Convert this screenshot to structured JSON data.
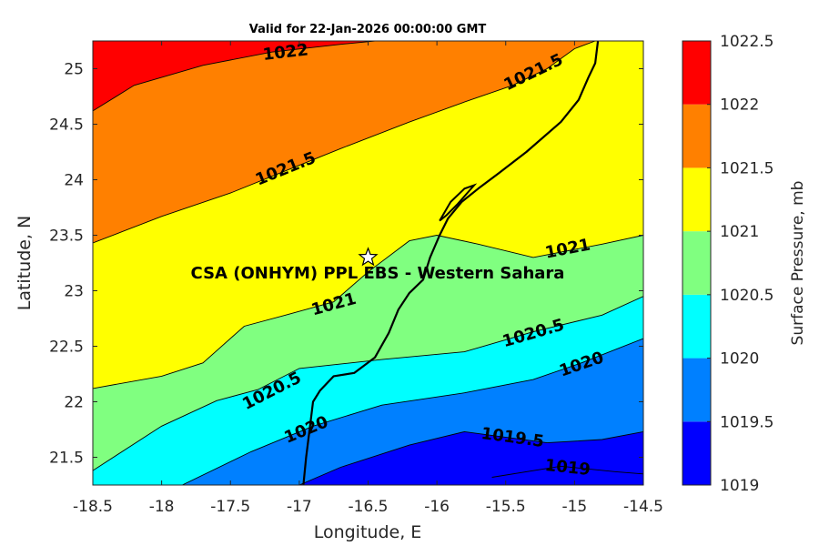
{
  "title": "Valid for 22-Jan-2026 00:00:00 GMT",
  "xlabel": "Longitude, E",
  "ylabel": "Latitude, N",
  "colorbar_label": "Surface Pressure, mb",
  "x_ticks": [
    "-18.5",
    "-18",
    "-17.5",
    "-17",
    "-16.5",
    "-16",
    "-15.5",
    "-15",
    "-14.5"
  ],
  "y_ticks": [
    "21.5",
    "22",
    "22.5",
    "23",
    "23.5",
    "24",
    "24.5",
    "25"
  ],
  "colorbar_ticks": [
    "1019",
    "1019.5",
    "1020",
    "1020.5",
    "1021",
    "1021.5",
    "1022",
    "1022.5"
  ],
  "site_label": "CSA (ONHYM) PPL EBS  - Western Sahara",
  "contour_labels": [
    {
      "text": "1022",
      "lon": -17.1,
      "lat": 25.15
    },
    {
      "text": "1021.5",
      "lon": -15.3,
      "lat": 24.97
    },
    {
      "text": "1021.5",
      "lon": -17.1,
      "lat": 24.1
    },
    {
      "text": "1021",
      "lon": -15.05,
      "lat": 23.38
    },
    {
      "text": "1021",
      "lon": -16.75,
      "lat": 22.88
    },
    {
      "text": "1020.5",
      "lon": -15.3,
      "lat": 22.62
    },
    {
      "text": "1020.5",
      "lon": -17.2,
      "lat": 22.1
    },
    {
      "text": "1020",
      "lon": -14.95,
      "lat": 22.34
    },
    {
      "text": "1020",
      "lon": -16.95,
      "lat": 21.75
    },
    {
      "text": "1019.5",
      "lon": -15.45,
      "lat": 21.68
    },
    {
      "text": "1019",
      "lon": -15.05,
      "lat": 21.41
    }
  ],
  "chart_data": {
    "type": "filled-contour",
    "title": "Valid for 22-Jan-2026 00:00:00 GMT",
    "xlabel": "Longitude, E",
    "ylabel": "Latitude, N",
    "xlim": [
      -18.5,
      -14.5
    ],
    "ylim": [
      21.25,
      25.25
    ],
    "levels": [
      1019,
      1019.5,
      1020,
      1020.5,
      1021,
      1021.5,
      1022,
      1022.5
    ],
    "colormap": [
      "#0000ff",
      "#0080ff",
      "#00ffff",
      "#80ff80",
      "#ffff00",
      "#ff8000",
      "#ff0000",
      "#800000"
    ],
    "colorbar_label": "Surface Pressure, mb",
    "site": {
      "name": "CSA (ONHYM) PPL EBS  - Western Sahara",
      "lon": -16.5,
      "lat": 23.3
    },
    "isobars": [
      {
        "level": 1022,
        "points": [
          [
            -18.5,
            24.62
          ],
          [
            -18.2,
            24.85
          ],
          [
            -17.7,
            25.03
          ],
          [
            -17.2,
            25.15
          ],
          [
            -16.7,
            25.22
          ],
          [
            -16.45,
            25.25
          ]
        ]
      },
      {
        "level": 1021.5,
        "points": [
          [
            -18.5,
            23.43
          ],
          [
            -18.0,
            23.67
          ],
          [
            -17.5,
            23.88
          ],
          [
            -17.2,
            24.03
          ],
          [
            -16.7,
            24.28
          ],
          [
            -16.2,
            24.52
          ],
          [
            -15.8,
            24.7
          ],
          [
            -15.45,
            24.85
          ],
          [
            -15.2,
            25.0
          ],
          [
            -15.0,
            25.18
          ],
          [
            -14.85,
            25.25
          ]
        ]
      },
      {
        "level": 1021,
        "points": [
          [
            -18.5,
            22.12
          ],
          [
            -18.0,
            22.23
          ],
          [
            -17.7,
            22.35
          ],
          [
            -17.4,
            22.68
          ],
          [
            -17.1,
            22.78
          ],
          [
            -16.75,
            22.9
          ],
          [
            -16.5,
            23.17
          ],
          [
            -16.2,
            23.45
          ],
          [
            -16.0,
            23.5
          ],
          [
            -15.7,
            23.42
          ],
          [
            -15.3,
            23.3
          ],
          [
            -14.8,
            23.42
          ],
          [
            -14.5,
            23.5
          ]
        ]
      },
      {
        "level": 1020.5,
        "points": [
          [
            -18.5,
            21.38
          ],
          [
            -18.0,
            21.78
          ],
          [
            -17.6,
            22.01
          ],
          [
            -17.3,
            22.11
          ],
          [
            -17.0,
            22.3
          ],
          [
            -16.4,
            22.38
          ],
          [
            -15.8,
            22.45
          ],
          [
            -15.3,
            22.63
          ],
          [
            -14.8,
            22.78
          ],
          [
            -14.5,
            22.95
          ]
        ]
      },
      {
        "level": 1020,
        "points": [
          [
            -17.85,
            21.25
          ],
          [
            -17.35,
            21.55
          ],
          [
            -16.9,
            21.78
          ],
          [
            -16.4,
            21.97
          ],
          [
            -15.8,
            22.08
          ],
          [
            -15.3,
            22.2
          ],
          [
            -14.95,
            22.35
          ],
          [
            -14.5,
            22.57
          ]
        ]
      },
      {
        "level": 1019.5,
        "points": [
          [
            -17.0,
            21.25
          ],
          [
            -16.7,
            21.41
          ],
          [
            -16.2,
            21.61
          ],
          [
            -15.8,
            21.73
          ],
          [
            -15.2,
            21.63
          ],
          [
            -14.8,
            21.66
          ],
          [
            -14.5,
            21.73
          ]
        ]
      },
      {
        "level": 1019,
        "points": [
          [
            -15.6,
            21.32
          ],
          [
            -15.1,
            21.42
          ],
          [
            -14.7,
            21.37
          ],
          [
            -14.5,
            21.35
          ]
        ]
      }
    ],
    "coastline": [
      [
        -16.97,
        21.25
      ],
      [
        -16.95,
        21.5
      ],
      [
        -16.92,
        21.8
      ],
      [
        -16.9,
        22.0
      ],
      [
        -16.85,
        22.1
      ],
      [
        -16.75,
        22.23
      ],
      [
        -16.6,
        22.26
      ],
      [
        -16.45,
        22.4
      ],
      [
        -16.35,
        22.62
      ],
      [
        -16.28,
        22.83
      ],
      [
        -16.2,
        22.98
      ],
      [
        -16.1,
        23.1
      ],
      [
        -16.05,
        23.3
      ],
      [
        -15.98,
        23.5
      ],
      [
        -15.92,
        23.65
      ],
      [
        -15.82,
        23.8
      ],
      [
        -15.7,
        23.92
      ],
      [
        -15.55,
        24.06
      ],
      [
        -15.35,
        24.25
      ],
      [
        -15.1,
        24.52
      ],
      [
        -14.97,
        24.72
      ],
      [
        -14.9,
        24.92
      ],
      [
        -14.85,
        25.05
      ],
      [
        -14.83,
        25.25
      ]
    ],
    "peninsula": [
      [
        -15.98,
        23.63
      ],
      [
        -15.9,
        23.8
      ],
      [
        -15.8,
        23.92
      ],
      [
        -15.73,
        23.95
      ],
      [
        -15.85,
        23.78
      ],
      [
        -15.93,
        23.68
      ],
      [
        -15.98,
        23.63
      ]
    ]
  }
}
